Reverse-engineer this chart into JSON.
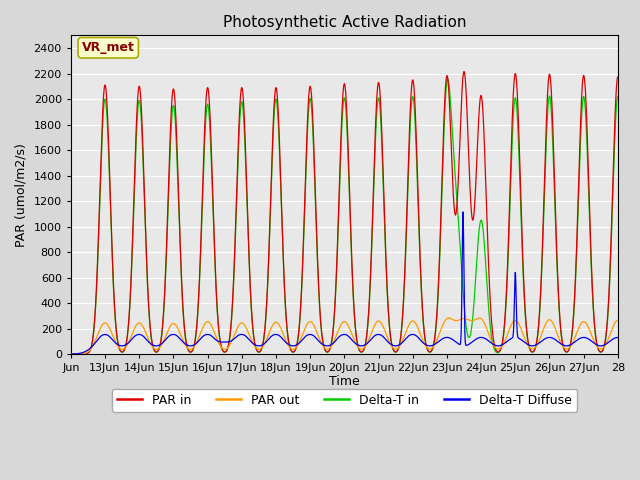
{
  "title": "Photosynthetic Active Radiation",
  "ylabel": "PAR (umol/m2/s)",
  "xlabel": "Time",
  "ylim": [
    0,
    2500
  ],
  "xlim_start": 12.0,
  "xlim_end": 28.0,
  "xtick_positions": [
    12,
    13,
    14,
    15,
    16,
    17,
    18,
    19,
    20,
    21,
    22,
    23,
    24,
    25,
    26,
    27,
    28
  ],
  "xtick_labels": [
    "Jun",
    "13Jun",
    "14Jun",
    "15Jun",
    "16Jun",
    "17Jun",
    "18Jun",
    "19Jun",
    "20Jun",
    "21Jun",
    "22Jun",
    "23Jun",
    "24Jun",
    "25Jun",
    "26Jun",
    "27Jun",
    "28"
  ],
  "ytick_positions": [
    0,
    200,
    400,
    600,
    800,
    1000,
    1200,
    1400,
    1600,
    1800,
    2000,
    2200,
    2400
  ],
  "colors": {
    "PAR_in": "#dd0000",
    "PAR_out": "#ff9900",
    "Delta_T_in": "#00cc00",
    "Delta_T_Diffuse": "#0000ee"
  },
  "legend_label": "VR_met",
  "fig_bg_color": "#d8d8d8",
  "plot_bg_color": "#e8e8e8",
  "grid_color": "#ffffff",
  "annotation_box_color": "#ffffcc",
  "annotation_text_color": "#880000",
  "annotation_edge_color": "#aaaa00"
}
